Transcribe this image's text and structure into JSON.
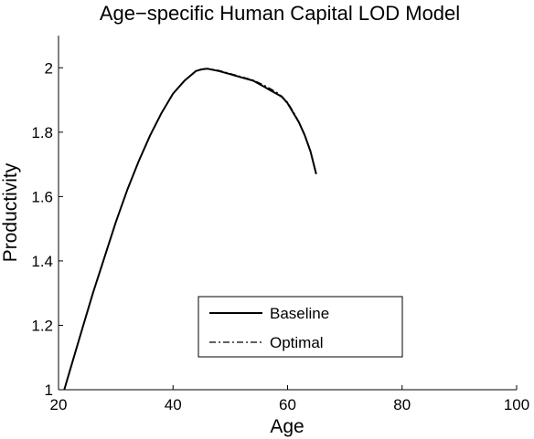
{
  "chart_data": {
    "type": "line",
    "title": "Age−specific Human Capital LOD Model",
    "xlabel": "Age",
    "ylabel": "Productivity",
    "xlim": [
      20,
      100
    ],
    "ylim": [
      1,
      2.1
    ],
    "xticks": [
      "20",
      "40",
      "60",
      "80",
      "100"
    ],
    "yticks": [
      "1",
      "1.2",
      "1.4",
      "1.6",
      "1.8",
      "2"
    ],
    "legend_position": "center-bottom",
    "grid": false,
    "series": [
      {
        "name": "Baseline",
        "style": "solid",
        "color": "#000000",
        "x": [
          21,
          22,
          24,
          26,
          28,
          30,
          32,
          34,
          36,
          38,
          40,
          42,
          44,
          45,
          46,
          48,
          50,
          52,
          54,
          56,
          57,
          58,
          59,
          60,
          61,
          62,
          63,
          64,
          65
        ],
        "y": [
          1.0,
          1.06,
          1.18,
          1.3,
          1.41,
          1.52,
          1.62,
          1.71,
          1.79,
          1.86,
          1.92,
          1.96,
          1.99,
          1.995,
          1.997,
          1.99,
          1.98,
          1.97,
          1.96,
          1.94,
          1.93,
          1.92,
          1.91,
          1.89,
          1.86,
          1.83,
          1.79,
          1.74,
          1.67
        ]
      },
      {
        "name": "Optimal",
        "style": "dashdot",
        "color": "#000000",
        "x": [
          21,
          22,
          24,
          26,
          28,
          30,
          32,
          34,
          36,
          38,
          40,
          42,
          44,
          45,
          46,
          48,
          50,
          52,
          54,
          56,
          57,
          58,
          59,
          60,
          61,
          62,
          63,
          64,
          65
        ],
        "y": [
          1.0,
          1.06,
          1.18,
          1.3,
          1.41,
          1.52,
          1.62,
          1.71,
          1.79,
          1.86,
          1.92,
          1.96,
          1.99,
          1.996,
          1.998,
          1.992,
          1.982,
          1.972,
          1.962,
          1.945,
          1.935,
          1.925,
          1.912,
          1.893,
          1.864,
          1.832,
          1.793,
          1.743,
          1.673
        ]
      }
    ]
  }
}
